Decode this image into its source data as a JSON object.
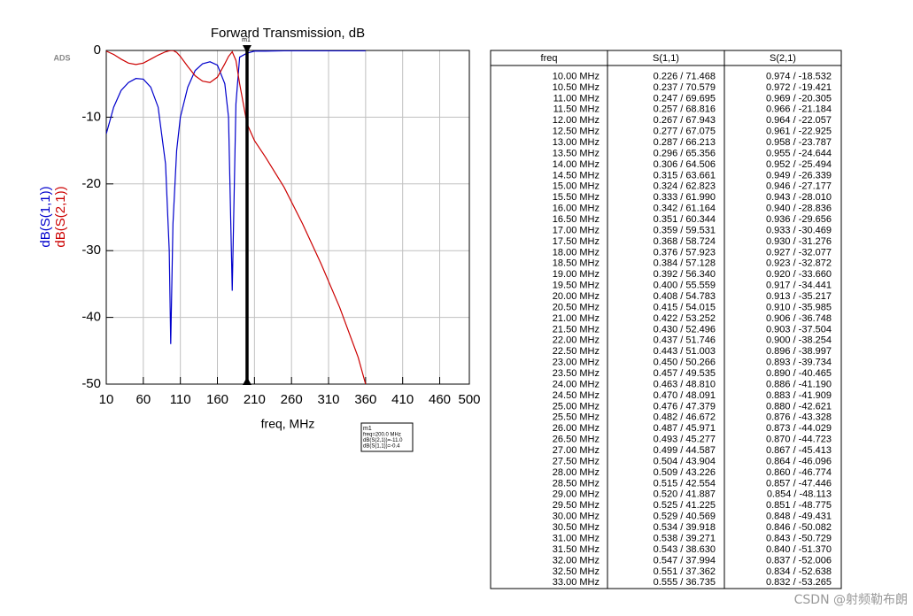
{
  "chart_data": {
    "type": "line",
    "brand": "ADS",
    "title": "Forward Transmission, dB",
    "xlabel": "freq, MHz",
    "xlim": [
      10,
      500
    ],
    "xticks": [
      10,
      60,
      110,
      160,
      210,
      260,
      310,
      360,
      410,
      460,
      500
    ],
    "ylim": [
      -50,
      0
    ],
    "yticks": [
      0,
      -10,
      -20,
      -30,
      -40,
      -50
    ],
    "grid": true,
    "x": [
      10,
      20,
      30,
      40,
      50,
      60,
      70,
      80,
      90,
      95,
      97,
      100,
      105,
      110,
      120,
      130,
      140,
      150,
      160,
      170,
      175,
      180,
      185,
      190,
      200,
      210,
      225,
      250,
      275,
      300,
      325,
      350,
      360
    ],
    "series": [
      {
        "name": "dB(S(1,1))",
        "color": "#0000cc",
        "values": [
          -12.5,
          -8.5,
          -6,
          -4.8,
          -4.2,
          -4.3,
          -5.5,
          -8.5,
          -17,
          -30,
          -44,
          -26,
          -15,
          -10,
          -5.5,
          -3,
          -2,
          -1.7,
          -2.2,
          -5,
          -10,
          -36,
          -8,
          -1,
          -0.4,
          -0.1,
          -0.1,
          -0.05,
          -0.05,
          -0.05,
          -0.05,
          -0.05,
          -0.05
        ]
      },
      {
        "name": "dB(S(2,1))",
        "color": "#cc0000",
        "values": [
          -0.1,
          -0.6,
          -1.3,
          -1.9,
          -2.1,
          -1.9,
          -1.3,
          -0.7,
          -0.2,
          -0.05,
          -0.02,
          0,
          -0.3,
          -0.9,
          -2.4,
          -3.8,
          -4.6,
          -4.8,
          -4,
          -2,
          -0.9,
          -0.2,
          -1.5,
          -5,
          -11,
          -13.5,
          -16,
          -20.5,
          -26,
          -32,
          -38.5,
          -46,
          -50
        ]
      }
    ],
    "marker": {
      "name": "m1",
      "x": 200,
      "lines": [
        "freq=200.0 MHz",
        "dB(S(2,1))=-11.0",
        "dB(S(1,1))=-0.4"
      ]
    }
  },
  "table": {
    "columns": [
      "freq",
      "S(1,1)",
      "S(2,1)"
    ],
    "rows": [
      [
        "10.00 MHz",
        "0.226 / 71.468",
        "0.974 / -18.532"
      ],
      [
        "10.50 MHz",
        "0.237 / 70.579",
        "0.972 / -19.421"
      ],
      [
        "11.00 MHz",
        "0.247 / 69.695",
        "0.969 / -20.305"
      ],
      [
        "11.50 MHz",
        "0.257 / 68.816",
        "0.966 / -21.184"
      ],
      [
        "12.00 MHz",
        "0.267 / 67.943",
        "0.964 / -22.057"
      ],
      [
        "12.50 MHz",
        "0.277 / 67.075",
        "0.961 / -22.925"
      ],
      [
        "13.00 MHz",
        "0.287 / 66.213",
        "0.958 / -23.787"
      ],
      [
        "13.50 MHz",
        "0.296 / 65.356",
        "0.955 / -24.644"
      ],
      [
        "14.00 MHz",
        "0.306 / 64.506",
        "0.952 / -25.494"
      ],
      [
        "14.50 MHz",
        "0.315 / 63.661",
        "0.949 / -26.339"
      ],
      [
        "15.00 MHz",
        "0.324 / 62.823",
        "0.946 / -27.177"
      ],
      [
        "15.50 MHz",
        "0.333 / 61.990",
        "0.943 / -28.010"
      ],
      [
        "16.00 MHz",
        "0.342 / 61.164",
        "0.940 / -28.836"
      ],
      [
        "16.50 MHz",
        "0.351 / 60.344",
        "0.936 / -29.656"
      ],
      [
        "17.00 MHz",
        "0.359 / 59.531",
        "0.933 / -30.469"
      ],
      [
        "17.50 MHz",
        "0.368 / 58.724",
        "0.930 / -31.276"
      ],
      [
        "18.00 MHz",
        "0.376 / 57.923",
        "0.927 / -32.077"
      ],
      [
        "18.50 MHz",
        "0.384 / 57.128",
        "0.923 / -32.872"
      ],
      [
        "19.00 MHz",
        "0.392 / 56.340",
        "0.920 / -33.660"
      ],
      [
        "19.50 MHz",
        "0.400 / 55.559",
        "0.917 / -34.441"
      ],
      [
        "20.00 MHz",
        "0.408 / 54.783",
        "0.913 / -35.217"
      ],
      [
        "20.50 MHz",
        "0.415 / 54.015",
        "0.910 / -35.985"
      ],
      [
        "21.00 MHz",
        "0.422 / 53.252",
        "0.906 / -36.748"
      ],
      [
        "21.50 MHz",
        "0.430 / 52.496",
        "0.903 / -37.504"
      ],
      [
        "22.00 MHz",
        "0.437 / 51.746",
        "0.900 / -38.254"
      ],
      [
        "22.50 MHz",
        "0.443 / 51.003",
        "0.896 / -38.997"
      ],
      [
        "23.00 MHz",
        "0.450 / 50.266",
        "0.893 / -39.734"
      ],
      [
        "23.50 MHz",
        "0.457 / 49.535",
        "0.890 / -40.465"
      ],
      [
        "24.00 MHz",
        "0.463 / 48.810",
        "0.886 / -41.190"
      ],
      [
        "24.50 MHz",
        "0.470 / 48.091",
        "0.883 / -41.909"
      ],
      [
        "25.00 MHz",
        "0.476 / 47.379",
        "0.880 / -42.621"
      ],
      [
        "25.50 MHz",
        "0.482 / 46.672",
        "0.876 / -43.328"
      ],
      [
        "26.00 MHz",
        "0.487 / 45.971",
        "0.873 / -44.029"
      ],
      [
        "26.50 MHz",
        "0.493 / 45.277",
        "0.870 / -44.723"
      ],
      [
        "27.00 MHz",
        "0.499 / 44.587",
        "0.867 / -45.413"
      ],
      [
        "27.50 MHz",
        "0.504 / 43.904",
        "0.864 / -46.096"
      ],
      [
        "28.00 MHz",
        "0.509 / 43.226",
        "0.860 / -46.774"
      ],
      [
        "28.50 MHz",
        "0.515 / 42.554",
        "0.857 / -47.446"
      ],
      [
        "29.00 MHz",
        "0.520 / 41.887",
        "0.854 / -48.113"
      ],
      [
        "29.50 MHz",
        "0.525 / 41.225",
        "0.851 / -48.775"
      ],
      [
        "30.00 MHz",
        "0.529 / 40.569",
        "0.848 / -49.431"
      ],
      [
        "30.50 MHz",
        "0.534 / 39.918",
        "0.846 / -50.082"
      ],
      [
        "31.00 MHz",
        "0.538 / 39.271",
        "0.843 / -50.729"
      ],
      [
        "31.50 MHz",
        "0.543 / 38.630",
        "0.840 / -51.370"
      ],
      [
        "32.00 MHz",
        "0.547 / 37.994",
        "0.837 / -52.006"
      ],
      [
        "32.50 MHz",
        "0.551 / 37.362",
        "0.834 / -52.638"
      ],
      [
        "33.00 MHz",
        "0.555 / 36.735",
        "0.832 / -53.265"
      ]
    ]
  },
  "watermark": "CSDN @射频勒布朗"
}
